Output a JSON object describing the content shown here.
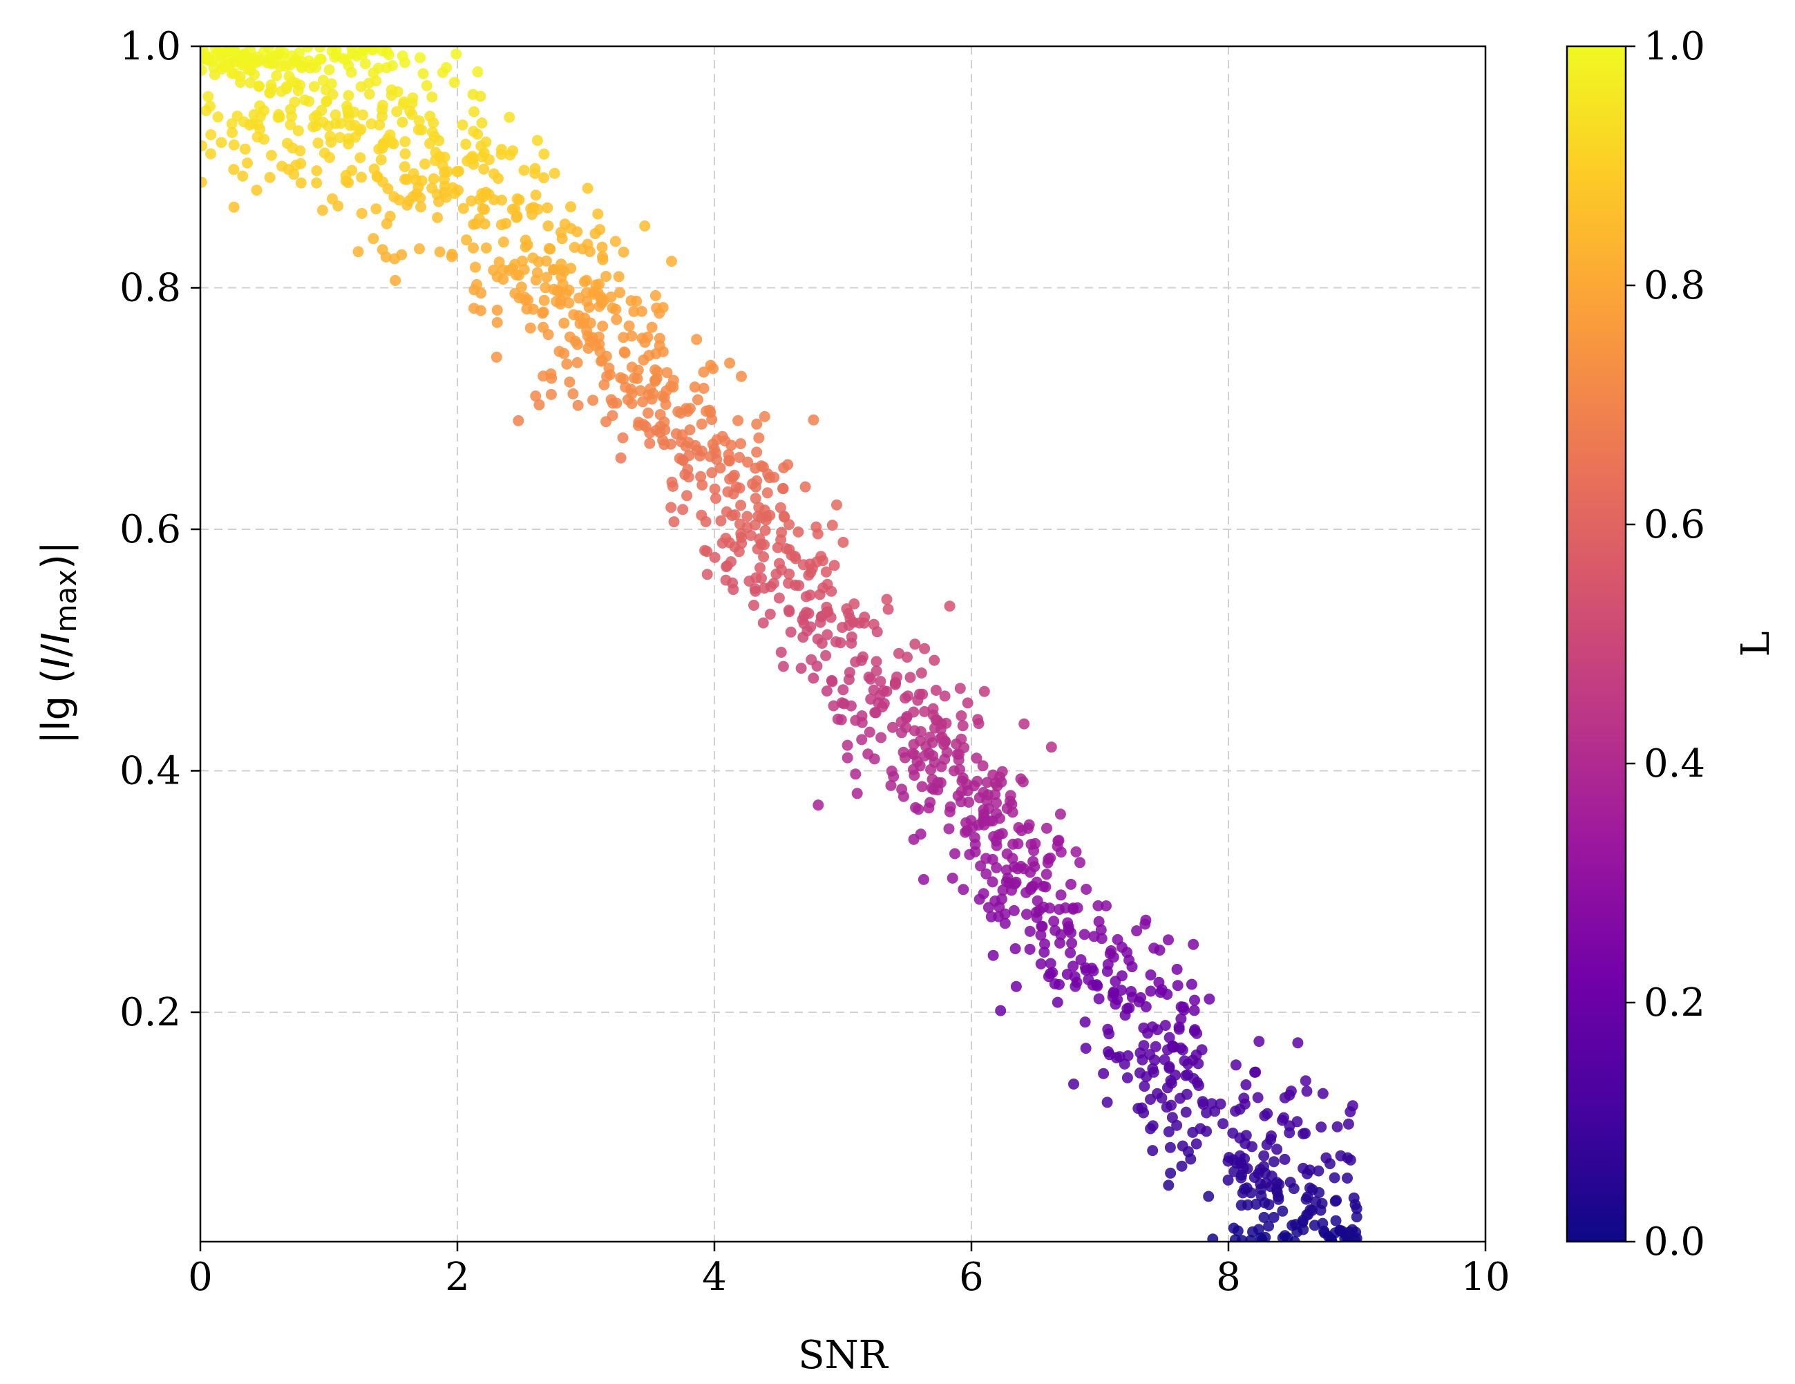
{
  "chart_data": {
    "type": "scatter",
    "xlabel": "SNR",
    "ylabel": {
      "prefix": "|lg (",
      "i1": "I",
      "slash": "/",
      "i2": "I",
      "sub": "max",
      "suffix": ")|"
    },
    "xlim": [
      0,
      10
    ],
    "ylim": [
      0.01,
      1.0
    ],
    "x_ticks": [
      "0",
      "2",
      "4",
      "6",
      "8",
      "10"
    ],
    "y_ticks": [
      "0.2",
      "0.4",
      "0.6",
      "0.8",
      "1.0"
    ],
    "grid": true,
    "grid_style": "dashed",
    "colormap": "plasma",
    "colorbar": {
      "label": "L",
      "range": [
        0.0,
        1.0
      ],
      "ticks": [
        "0.0",
        "0.2",
        "0.4",
        "0.6",
        "0.8",
        "1.0"
      ]
    },
    "trend": {
      "x": [
        0,
        1,
        2,
        3,
        4,
        5,
        6,
        7,
        8,
        9
      ],
      "y": [
        0.99,
        0.95,
        0.89,
        0.79,
        0.65,
        0.5,
        0.38,
        0.24,
        0.09,
        0.02
      ],
      "spread": 0.045
    },
    "n_points": 1500,
    "colors": {
      "plasma": [
        "#0d0887",
        "#46039f",
        "#7201a8",
        "#9c179e",
        "#bd3786",
        "#d8576b",
        "#ed7953",
        "#fb9f3a",
        "#fdca26",
        "#f0f921"
      ],
      "grid": "#d0d0d0",
      "axis": "#000000"
    }
  }
}
